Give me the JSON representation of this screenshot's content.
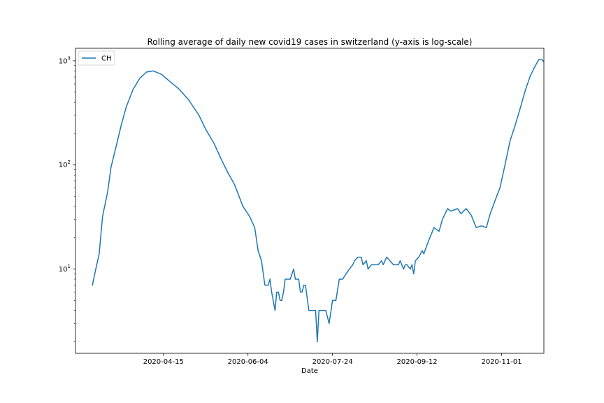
{
  "chart_data": {
    "type": "line",
    "title": "Rolling average of daily new covid19 cases in switzerland (y-axis is log-scale)",
    "xlabel": "Date",
    "ylabel": "",
    "yscale": "log",
    "xlim": [
      "2020-02-23",
      "2020-11-26"
    ],
    "ylim": [
      1.55,
      1320
    ],
    "x_ticks": [
      "2020-04-15",
      "2020-06-04",
      "2020-07-24",
      "2020-09-12",
      "2020-11-01"
    ],
    "y_ticks": [
      {
        "value": 10,
        "base": "10",
        "exp": "1"
      },
      {
        "value": 100,
        "base": "10",
        "exp": "2"
      },
      {
        "value": 1000,
        "base": "10",
        "exp": "3"
      }
    ],
    "legend": {
      "position": "top-left"
    },
    "grid": false,
    "colors": {
      "series": "#1f77b4"
    },
    "series": [
      {
        "name": "CH",
        "points": [
          [
            "2020-03-04",
            7
          ],
          [
            "2020-03-06",
            10
          ],
          [
            "2020-03-08",
            14
          ],
          [
            "2020-03-10",
            32
          ],
          [
            "2020-03-13",
            55
          ],
          [
            "2020-03-15",
            95
          ],
          [
            "2020-03-18",
            150
          ],
          [
            "2020-03-21",
            240
          ],
          [
            "2020-03-24",
            360
          ],
          [
            "2020-03-28",
            530
          ],
          [
            "2020-04-01",
            680
          ],
          [
            "2020-04-05",
            780
          ],
          [
            "2020-04-09",
            800
          ],
          [
            "2020-04-14",
            740
          ],
          [
            "2020-04-18",
            650
          ],
          [
            "2020-04-24",
            540
          ],
          [
            "2020-04-30",
            420
          ],
          [
            "2020-05-06",
            300
          ],
          [
            "2020-05-10",
            220
          ],
          [
            "2020-05-15",
            160
          ],
          [
            "2020-05-19",
            115
          ],
          [
            "2020-05-23",
            85
          ],
          [
            "2020-05-27",
            65
          ],
          [
            "2020-06-01",
            40
          ],
          [
            "2020-06-05",
            32
          ],
          [
            "2020-06-08",
            25
          ],
          [
            "2020-06-10",
            15
          ],
          [
            "2020-06-12",
            12
          ],
          [
            "2020-06-14",
            7
          ],
          [
            "2020-06-16",
            7
          ],
          [
            "2020-06-17",
            8
          ],
          [
            "2020-06-18",
            6
          ],
          [
            "2020-06-20",
            4
          ],
          [
            "2020-06-21",
            6
          ],
          [
            "2020-06-22",
            6
          ],
          [
            "2020-06-23",
            5
          ],
          [
            "2020-06-24",
            5
          ],
          [
            "2020-06-25",
            6
          ],
          [
            "2020-06-26",
            8
          ],
          [
            "2020-06-29",
            8
          ],
          [
            "2020-07-01",
            10
          ],
          [
            "2020-07-02",
            8
          ],
          [
            "2020-07-04",
            8
          ],
          [
            "2020-07-05",
            6
          ],
          [
            "2020-07-06",
            6
          ],
          [
            "2020-07-07",
            7
          ],
          [
            "2020-07-08",
            7
          ],
          [
            "2020-07-10",
            4
          ],
          [
            "2020-07-14",
            4
          ],
          [
            "2020-07-15",
            2
          ],
          [
            "2020-07-16",
            4
          ],
          [
            "2020-07-20",
            4
          ],
          [
            "2020-07-22",
            3
          ],
          [
            "2020-07-24",
            5
          ],
          [
            "2020-07-26",
            5
          ],
          [
            "2020-07-28",
            8
          ],
          [
            "2020-07-30",
            8
          ],
          [
            "2020-08-01",
            9
          ],
          [
            "2020-08-03",
            10
          ],
          [
            "2020-08-05",
            11
          ],
          [
            "2020-08-06",
            12
          ],
          [
            "2020-08-08",
            13
          ],
          [
            "2020-08-10",
            13
          ],
          [
            "2020-08-11",
            11
          ],
          [
            "2020-08-13",
            12
          ],
          [
            "2020-08-14",
            10
          ],
          [
            "2020-08-16",
            11
          ],
          [
            "2020-08-20",
            11
          ],
          [
            "2020-08-22",
            12
          ],
          [
            "2020-08-23",
            11
          ],
          [
            "2020-08-25",
            13
          ],
          [
            "2020-08-27",
            12
          ],
          [
            "2020-08-29",
            11
          ],
          [
            "2020-09-01",
            11
          ],
          [
            "2020-09-02",
            12
          ],
          [
            "2020-09-04",
            10
          ],
          [
            "2020-09-05",
            11
          ],
          [
            "2020-09-06",
            11
          ],
          [
            "2020-09-08",
            10
          ],
          [
            "2020-09-09",
            11
          ],
          [
            "2020-09-10",
            9
          ],
          [
            "2020-09-11",
            12
          ],
          [
            "2020-09-13",
            13
          ],
          [
            "2020-09-15",
            15
          ],
          [
            "2020-09-16",
            14
          ],
          [
            "2020-09-19",
            19
          ],
          [
            "2020-09-22",
            25
          ],
          [
            "2020-09-25",
            23
          ],
          [
            "2020-09-27",
            30
          ],
          [
            "2020-09-30",
            38
          ],
          [
            "2020-10-02",
            36
          ],
          [
            "2020-10-06",
            38
          ],
          [
            "2020-10-08",
            34
          ],
          [
            "2020-10-11",
            38
          ],
          [
            "2020-10-14",
            33
          ],
          [
            "2020-10-17",
            25
          ],
          [
            "2020-10-20",
            26
          ],
          [
            "2020-10-23",
            25
          ],
          [
            "2020-10-25",
            33
          ],
          [
            "2020-10-28",
            45
          ],
          [
            "2020-10-31",
            60
          ],
          [
            "2020-11-03",
            100
          ],
          [
            "2020-11-06",
            170
          ],
          [
            "2020-11-09",
            240
          ],
          [
            "2020-11-12",
            350
          ],
          [
            "2020-11-15",
            520
          ],
          [
            "2020-11-18",
            720
          ],
          [
            "2020-11-21",
            900
          ],
          [
            "2020-11-23",
            1030
          ],
          [
            "2020-11-25",
            1020
          ],
          [
            "2020-11-26",
            980
          ]
        ]
      }
    ]
  }
}
